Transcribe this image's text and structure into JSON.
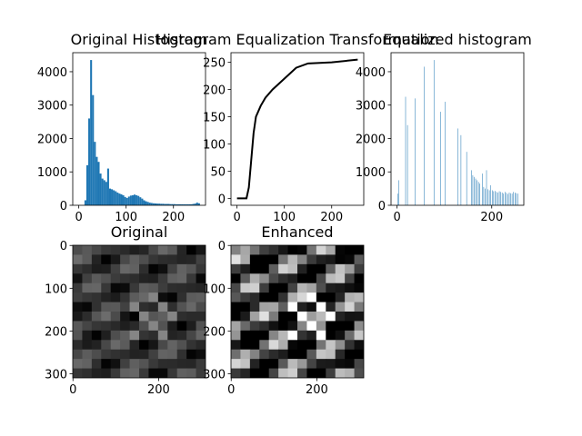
{
  "chart_data": [
    {
      "type": "histogram",
      "title": "Original Histogram",
      "color": "#1f77b4",
      "bins": [
        0,
        4,
        8,
        12,
        16,
        20,
        24,
        28,
        32,
        36,
        40,
        44,
        48,
        52,
        56,
        60,
        64,
        68,
        72,
        76,
        80,
        84,
        88,
        92,
        96,
        100,
        104,
        108,
        112,
        116,
        120,
        124,
        128,
        132,
        136,
        140,
        144,
        148,
        152,
        156,
        160,
        164,
        168,
        172,
        176,
        180,
        184,
        188,
        192,
        196,
        200,
        204,
        208,
        212,
        216,
        220,
        224,
        228,
        232,
        236,
        240,
        244,
        248,
        252,
        256
      ],
      "values": [
        0,
        0,
        0,
        150,
        1200,
        2600,
        4350,
        3300,
        1900,
        1450,
        1300,
        950,
        800,
        750,
        700,
        1100,
        500,
        480,
        450,
        420,
        380,
        350,
        330,
        300,
        250,
        220,
        260,
        290,
        300,
        320,
        300,
        280,
        240,
        200,
        150,
        120,
        100,
        80,
        70,
        60,
        55,
        50,
        50,
        45,
        45,
        40,
        40,
        40,
        35,
        35,
        35,
        30,
        30,
        30,
        30,
        30,
        30,
        30,
        30,
        30,
        40,
        50,
        80,
        60
      ],
      "xlim": [
        -12.75,
        267.75
      ],
      "xticks": [
        0,
        100,
        200
      ],
      "ylim": [
        0,
        4570
      ],
      "yticks": [
        0,
        1000,
        2000,
        3000,
        4000
      ]
    },
    {
      "type": "line",
      "title": "Histogram Equalization Transformation",
      "color": "#000000",
      "x": [
        0,
        20,
        25,
        30,
        35,
        40,
        50,
        60,
        75,
        100,
        125,
        150,
        200,
        255
      ],
      "values": [
        0,
        0,
        20,
        70,
        120,
        150,
        170,
        185,
        200,
        220,
        240,
        248,
        250,
        255
      ],
      "xlim": [
        -12.75,
        267.75
      ],
      "xticks": [
        0,
        100,
        200
      ],
      "ylim": [
        -12.75,
        267.75
      ],
      "yticks": [
        0,
        50,
        100,
        150,
        200,
        250
      ]
    },
    {
      "type": "bar",
      "title": "Equalized histogram",
      "color": "#1f77b4",
      "x": [
        2,
        4,
        18,
        22,
        38,
        57,
        78,
        92,
        102,
        128,
        135,
        147,
        157,
        160,
        163,
        166,
        169,
        172,
        175,
        180,
        183,
        186,
        189,
        192,
        195,
        198,
        201,
        204,
        207,
        210,
        213,
        216,
        219,
        222,
        225,
        228,
        231,
        234,
        237,
        240,
        243,
        246,
        249,
        252,
        255
      ],
      "values": [
        350,
        750,
        3250,
        2400,
        3200,
        4150,
        4350,
        2800,
        3100,
        2300,
        2100,
        1600,
        1050,
        900,
        850,
        800,
        750,
        700,
        650,
        950,
        550,
        500,
        1050,
        480,
        450,
        600,
        450,
        420,
        430,
        400,
        380,
        420,
        400,
        380,
        350,
        400,
        370,
        340,
        380,
        360,
        350,
        400,
        380,
        360,
        350
      ],
      "xlim": [
        -12.75,
        267.75
      ],
      "xticks": [
        0,
        200
      ],
      "ylim": [
        0,
        4570
      ],
      "yticks": [
        0,
        1000,
        2000,
        3000,
        4000
      ]
    },
    {
      "type": "image",
      "title": "Original",
      "xlim": [
        -0.5,
        309.5
      ],
      "xticks": [
        0,
        200
      ],
      "ylim": [
        309.5,
        -0.5
      ],
      "yticks": [
        0,
        100,
        200,
        300
      ]
    },
    {
      "type": "image",
      "title": "Enhanced",
      "xlim": [
        -0.5,
        309.5
      ],
      "xticks": [
        0,
        200
      ],
      "ylim": [
        309.5,
        -0.5
      ],
      "yticks": [
        0,
        100,
        200,
        300
      ]
    }
  ]
}
